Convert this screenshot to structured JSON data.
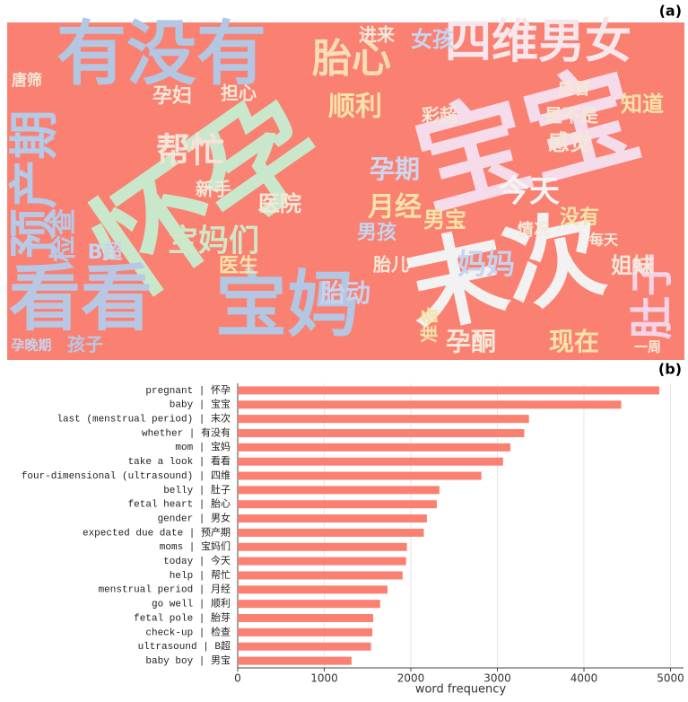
{
  "chart_data": [
    {
      "type": "wordcloud",
      "label": "(a)",
      "background": "#fa8072",
      "words": [
        {
          "text": "怀孕",
          "color": "#c9e8cb"
        },
        {
          "text": "宝宝",
          "color": "#f6dcea"
        },
        {
          "text": "末次",
          "color": "#f2f2f2"
        },
        {
          "text": "有没有",
          "color": "#b3c6e2"
        },
        {
          "text": "看看",
          "color": "#b8c8e4"
        },
        {
          "text": "宝妈",
          "color": "#b3c6e2"
        },
        {
          "text": "四维男女",
          "color": "#f7e7ec"
        },
        {
          "text": "预产期",
          "color": "#b6c9e6"
        },
        {
          "text": "胎心",
          "color": "#f7deb4"
        },
        {
          "text": "肚子",
          "color": "#f3d3e6"
        },
        {
          "text": "帮忙",
          "color": "#f4e3d7"
        },
        {
          "text": "孕期",
          "color": "#cdd8f0"
        },
        {
          "text": "顺利",
          "color": "#f7e3a8"
        },
        {
          "text": "月经",
          "color": "#f7e3a8"
        },
        {
          "text": "今天",
          "color": "#f4f4f4"
        },
        {
          "text": "宝妈们",
          "color": "#cfe8c6"
        },
        {
          "text": "胎动",
          "color": "#c6d3ee"
        },
        {
          "text": "妈妈",
          "color": "#c6d3ee"
        },
        {
          "text": "现在",
          "color": "#f7e3a8"
        },
        {
          "text": "孕酮",
          "color": "#f4e8d8"
        },
        {
          "text": "医院",
          "color": "#f4e8d8"
        },
        {
          "text": "感觉",
          "color": "#f4e8d8"
        },
        {
          "text": "是不是",
          "color": "#f4e8d8"
        },
        {
          "text": "知道",
          "color": "#f7e3a8"
        },
        {
          "text": "彩超",
          "color": "#f4e8d8"
        },
        {
          "text": "女孩",
          "color": "#c6d3ee"
        },
        {
          "text": "检查",
          "color": "#b6c9e6"
        },
        {
          "text": "B超",
          "color": "#c6d3ee"
        },
        {
          "text": "孕妇",
          "color": "#f4e8d8"
        },
        {
          "text": "新手",
          "color": "#f4e8d8"
        },
        {
          "text": "医生",
          "color": "#f7e3a8"
        },
        {
          "text": "担心",
          "color": "#f4e8d8"
        },
        {
          "text": "男孩",
          "color": "#c6d3ee"
        },
        {
          "text": "姐妹",
          "color": "#f4e8d8"
        },
        {
          "text": "孩子",
          "color": "#b6c9e6"
        },
        {
          "text": "男宝",
          "color": "#f7e3a8"
        },
        {
          "text": "胎儿",
          "color": "#f4e8d8"
        },
        {
          "text": "准备",
          "color": "#f7e3a8"
        },
        {
          "text": "进来",
          "color": "#f4e8d8"
        },
        {
          "text": "唐筛",
          "color": "#f4e8d8"
        },
        {
          "text": "孕晚期",
          "color": "#c6d3ee"
        },
        {
          "text": "感冒",
          "color": "#f4e8d8"
        },
        {
          "text": "每天",
          "color": "#f4e8d8"
        },
        {
          "text": "情况",
          "color": "#f4e8d8"
        },
        {
          "text": "没有",
          "color": "#f7e3a8"
        },
        {
          "text": "一周",
          "color": "#f4e8d8"
        }
      ]
    },
    {
      "type": "bar",
      "orientation": "horizontal",
      "label": "(b)",
      "color": "#fa8072",
      "categories": [
        "pregnant | 怀孕",
        "baby | 宝宝",
        "last (menstrual period) | 末次",
        "whether | 有没有",
        "mom | 宝妈",
        "take a look | 看看",
        "four-dimensional (ultrasound) | 四维",
        "belly | 肚子",
        "fetal heart | 胎心",
        "gender | 男女",
        "expected due date | 预产期",
        "moms | 宝妈们",
        "today | 今天",
        "help | 帮忙",
        "menstrual period | 月经",
        "go well | 顺利",
        "fetal pole | 胎芽",
        "check-up | 检查",
        "ultrasound | B超",
        "baby boy | 男宝"
      ],
      "values": [
        4870,
        4430,
        3365,
        3310,
        3150,
        3065,
        2815,
        2330,
        2300,
        2185,
        2150,
        1955,
        1945,
        1905,
        1730,
        1645,
        1565,
        1555,
        1540,
        1315
      ],
      "xlim": [
        0,
        5150
      ],
      "xticks": [
        0,
        1000,
        2000,
        3000,
        4000,
        5000
      ],
      "xlabel": "word frequency",
      "grid": true
    }
  ]
}
